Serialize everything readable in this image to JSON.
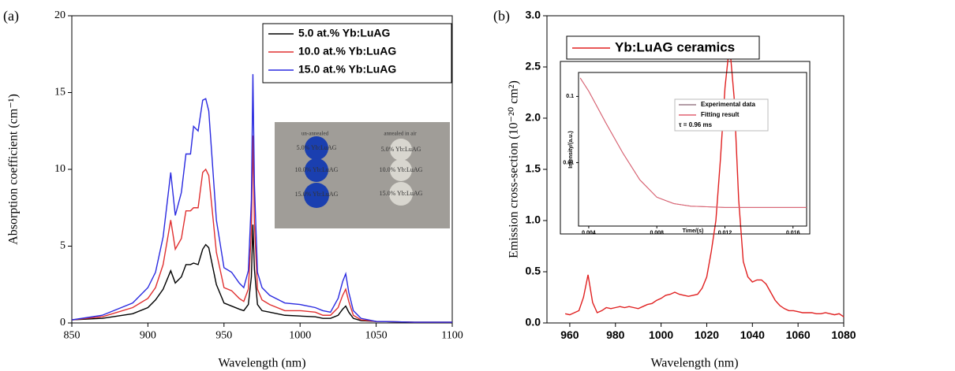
{
  "chart_data": [
    {
      "type": "line",
      "panel_label": "(a)",
      "x_label": "Wavelength (nm)",
      "y_label": "Absorption coefficient (cm⁻¹)",
      "xlim": [
        850,
        1100
      ],
      "xticks": [
        850,
        900,
        950,
        1000,
        1050,
        1100
      ],
      "ylim": [
        0,
        20
      ],
      "yticks": [
        0,
        5,
        10,
        15,
        20
      ],
      "legend": "upper right",
      "x": [
        850,
        870,
        890,
        900,
        905,
        910,
        915,
        918,
        922,
        925,
        928,
        930,
        933,
        936,
        938,
        940,
        945,
        950,
        955,
        960,
        963,
        966,
        968,
        969,
        970,
        972,
        975,
        980,
        990,
        1000,
        1010,
        1015,
        1020,
        1025,
        1028,
        1030,
        1032,
        1035,
        1040,
        1050,
        1075,
        1100
      ],
      "series": [
        {
          "name": "5.0 at.% Yb:LuAG",
          "color": "#000000",
          "values": [
            0.2,
            0.3,
            0.6,
            1.0,
            1.5,
            2.2,
            3.4,
            2.6,
            3.0,
            3.8,
            3.8,
            3.9,
            3.8,
            4.8,
            5.1,
            4.9,
            2.5,
            1.3,
            1.1,
            0.9,
            0.8,
            1.2,
            3,
            6.4,
            3.5,
            1.2,
            0.8,
            0.7,
            0.5,
            0.45,
            0.4,
            0.3,
            0.3,
            0.5,
            0.9,
            1.1,
            0.7,
            0.3,
            0.15,
            0.1,
            0.05,
            0.05
          ]
        },
        {
          "name": "10.0 at.% Yb:LuAG",
          "color": "#e03030",
          "values": [
            0.2,
            0.4,
            1.0,
            1.6,
            2.3,
            3.8,
            6.7,
            4.8,
            5.5,
            7.3,
            7.3,
            7.5,
            7.5,
            9.8,
            10.0,
            9.6,
            4.6,
            2.3,
            2.1,
            1.6,
            1.4,
            2.2,
            6,
            12.2,
            6.5,
            2.2,
            1.5,
            1.2,
            0.8,
            0.8,
            0.7,
            0.5,
            0.5,
            1.0,
            1.8,
            2.2,
            1.4,
            0.5,
            0.2,
            0.1,
            0.05,
            0.05
          ]
        },
        {
          "name": "15.0 at.% Yb:LuAG",
          "color": "#2a2ae0",
          "values": [
            0.2,
            0.5,
            1.3,
            2.3,
            3.3,
            5.6,
            9.8,
            7.0,
            8.5,
            11.0,
            11.0,
            12.8,
            12.5,
            14.5,
            14.6,
            13.8,
            6.7,
            3.6,
            3.3,
            2.6,
            2.3,
            3.4,
            8,
            16.2,
            9,
            3.3,
            2.3,
            1.8,
            1.3,
            1.2,
            1.0,
            0.8,
            0.7,
            1.6,
            2.7,
            3.2,
            2.0,
            0.8,
            0.3,
            0.1,
            0.05,
            0.05
          ]
        }
      ],
      "inset": {
        "headers": [
          "un-annealed",
          "annealed in air"
        ],
        "labels": [
          "5.0% Yb:LuAG",
          "10.0% Yb:LuAG",
          "15.0% Yb:LuAG",
          "5.0% Yb:LuAG",
          "10.0% Yb:LuAG",
          "15.0% Yb:LuAG"
        ]
      }
    },
    {
      "type": "line",
      "panel_label": "(b)",
      "x_label": "Wavelength (nm)",
      "y_label": "Emission cross-section (10⁻²⁰ cm²)",
      "xlim": [
        950,
        1080
      ],
      "xticks": [
        960,
        980,
        1000,
        1020,
        1040,
        1060,
        1080
      ],
      "ylim": [
        0,
        3.0
      ],
      "yticks": [
        {
          "value": 0,
          "label": "0.0"
        },
        0.5,
        {
          "value": 1,
          "label": "1.0"
        },
        1.5,
        {
          "value": 2,
          "label": "2.0"
        },
        2.5,
        {
          "value": 3,
          "label": "3.0"
        }
      ],
      "legend": "upper left",
      "x": [
        958,
        960,
        962,
        964,
        966,
        968,
        970,
        972,
        974,
        976,
        978,
        980,
        982,
        984,
        986,
        988,
        990,
        992,
        994,
        996,
        998,
        1000,
        1002,
        1004,
        1006,
        1008,
        1010,
        1012,
        1014,
        1016,
        1018,
        1020,
        1022,
        1024,
        1026,
        1028,
        1030,
        1032,
        1034,
        1036,
        1038,
        1040,
        1042,
        1044,
        1046,
        1048,
        1050,
        1052,
        1054,
        1056,
        1058,
        1060,
        1062,
        1064,
        1066,
        1068,
        1070,
        1072,
        1074,
        1076,
        1078,
        1080
      ],
      "series": [
        {
          "name": "Yb:LuAG ceramics",
          "color": "#e02020",
          "values": [
            0.09,
            0.08,
            0.1,
            0.12,
            0.25,
            0.47,
            0.2,
            0.1,
            0.12,
            0.15,
            0.14,
            0.15,
            0.16,
            0.15,
            0.16,
            0.15,
            0.14,
            0.16,
            0.18,
            0.19,
            0.22,
            0.24,
            0.27,
            0.28,
            0.3,
            0.28,
            0.27,
            0.26,
            0.27,
            0.28,
            0.34,
            0.45,
            0.7,
            1.0,
            1.6,
            2.3,
            2.72,
            2.2,
            1.2,
            0.6,
            0.45,
            0.4,
            0.42,
            0.42,
            0.38,
            0.3,
            0.22,
            0.17,
            0.14,
            0.12,
            0.12,
            0.11,
            0.1,
            0.1,
            0.1,
            0.09,
            0.09,
            0.1,
            0.09,
            0.08,
            0.09,
            0.06
          ]
        }
      ]
    },
    {
      "type": "line",
      "x_label": "Time/(s)",
      "y_label": "Intensity/(a.u.)",
      "annotation": "τ = 0.96 ms",
      "xlim": [
        0.0034,
        0.0168
      ],
      "xticks": [
        0.004,
        0.008,
        0.012,
        0.016
      ],
      "ylim": [
        0.0011,
        0.23
      ],
      "yticks": [
        0.01,
        0.1
      ],
      "ylog": true,
      "legend": "upper right",
      "x": [
        0.0035,
        0.004,
        0.005,
        0.006,
        0.007,
        0.008,
        0.009,
        0.01,
        0.012,
        0.014,
        0.016,
        0.0168
      ],
      "series": [
        {
          "name": "Experimental data",
          "color": "#9a7d8a",
          "values": [
            0.19,
            0.12,
            0.04,
            0.014,
            0.0055,
            0.003,
            0.0024,
            0.0022,
            0.0021,
            0.0021,
            0.0021,
            0.0021
          ]
        },
        {
          "name": "Fitting result",
          "color": "#e06070",
          "values": [
            0.19,
            0.12,
            0.04,
            0.014,
            0.0055,
            0.003,
            0.0024,
            0.0022,
            0.0021,
            0.0021,
            0.0021,
            0.0021
          ]
        }
      ]
    }
  ]
}
